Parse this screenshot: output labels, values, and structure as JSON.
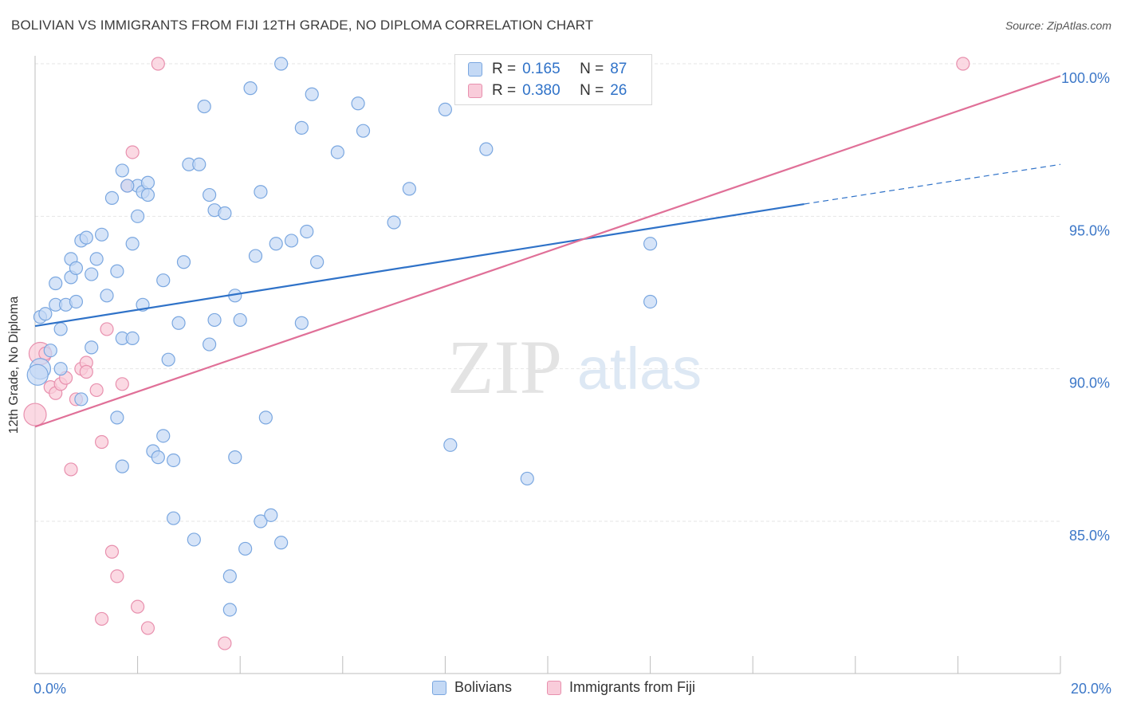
{
  "title": "BOLIVIAN VS IMMIGRANTS FROM FIJI 12TH GRADE, NO DIPLOMA CORRELATION CHART",
  "source": "Source: ZipAtlas.com",
  "watermark": {
    "zip": "ZIP",
    "atlas": "atlas"
  },
  "legend": {
    "r_label": "R =",
    "n_label": "N =",
    "rows": [
      {
        "r": "0.165",
        "n": "87",
        "color": "#7aa7e0"
      },
      {
        "r": "0.380",
        "n": "26",
        "color": "#e890ae"
      }
    ]
  },
  "bottom_legend": [
    "Bolivians",
    "Immigrants from Fiji"
  ],
  "chart_data": {
    "type": "scatter",
    "title": "BOLIVIAN VS IMMIGRANTS FROM FIJI 12TH GRADE, NO DIPLOMA CORRELATION CHART",
    "xlabel": "",
    "ylabel": "12th Grade, No Diploma",
    "xlim": [
      0,
      20
    ],
    "ylim": [
      80.5,
      100.8
    ],
    "x_tick_labels": [
      "0.0%",
      "20.0%"
    ],
    "y_ticks": [
      85,
      90,
      95,
      100
    ],
    "y_tick_labels": [
      "85.0%",
      "90.0%",
      "95.0%",
      "100.0%"
    ],
    "grid": true,
    "legend_position": "top-center",
    "colors": {
      "blue": "#2f72c8",
      "pink": "#e07098",
      "blue_fill": "#c4d9f5",
      "pink_fill": "#f9ccda"
    },
    "series": [
      {
        "name": "Bolivians",
        "points": [
          [
            0.1,
            91.7
          ],
          [
            0.1,
            90.0
          ],
          [
            0.2,
            91.8
          ],
          [
            0.3,
            90.6
          ],
          [
            0.4,
            92.1
          ],
          [
            0.4,
            92.8
          ],
          [
            0.5,
            90.0
          ],
          [
            0.5,
            91.3
          ],
          [
            0.6,
            92.1
          ],
          [
            0.7,
            93.0
          ],
          [
            0.7,
            93.6
          ],
          [
            0.8,
            92.2
          ],
          [
            0.8,
            93.3
          ],
          [
            0.9,
            94.2
          ],
          [
            1.0,
            94.3
          ],
          [
            1.1,
            93.1
          ],
          [
            1.1,
            90.7
          ],
          [
            1.2,
            93.6
          ],
          [
            1.3,
            94.4
          ],
          [
            1.4,
            92.4
          ],
          [
            1.5,
            95.6
          ],
          [
            1.6,
            93.2
          ],
          [
            1.6,
            88.4
          ],
          [
            1.7,
            96.5
          ],
          [
            1.7,
            91.0
          ],
          [
            1.9,
            94.1
          ],
          [
            1.9,
            91.0
          ],
          [
            2.0,
            95.0
          ],
          [
            2.0,
            96.0
          ],
          [
            2.1,
            95.8
          ],
          [
            2.1,
            92.1
          ],
          [
            2.2,
            96.1
          ],
          [
            2.2,
            95.7
          ],
          [
            2.3,
            87.3
          ],
          [
            2.4,
            87.1
          ],
          [
            2.5,
            92.9
          ],
          [
            2.5,
            87.8
          ],
          [
            2.6,
            90.3
          ],
          [
            2.7,
            85.1
          ],
          [
            2.7,
            87.0
          ],
          [
            2.8,
            91.5
          ],
          [
            2.9,
            93.5
          ],
          [
            3.0,
            96.7
          ],
          [
            3.1,
            84.4
          ],
          [
            3.2,
            96.7
          ],
          [
            3.3,
            98.6
          ],
          [
            3.4,
            95.7
          ],
          [
            3.4,
            90.8
          ],
          [
            3.5,
            95.2
          ],
          [
            3.5,
            91.6
          ],
          [
            3.7,
            95.1
          ],
          [
            3.8,
            83.2
          ],
          [
            3.8,
            82.1
          ],
          [
            3.9,
            87.1
          ],
          [
            3.9,
            92.4
          ],
          [
            4.0,
            91.6
          ],
          [
            4.1,
            84.1
          ],
          [
            4.2,
            99.2
          ],
          [
            4.3,
            93.7
          ],
          [
            4.4,
            95.8
          ],
          [
            4.4,
            85.0
          ],
          [
            4.5,
            88.4
          ],
          [
            4.6,
            85.2
          ],
          [
            4.7,
            94.1
          ],
          [
            4.8,
            100.0
          ],
          [
            4.8,
            84.3
          ],
          [
            5.0,
            94.2
          ],
          [
            5.2,
            97.9
          ],
          [
            5.2,
            91.5
          ],
          [
            5.3,
            94.5
          ],
          [
            5.4,
            99.0
          ],
          [
            5.5,
            93.5
          ],
          [
            5.9,
            97.1
          ],
          [
            6.3,
            98.7
          ],
          [
            6.4,
            97.8
          ],
          [
            7.0,
            94.8
          ],
          [
            7.3,
            95.9
          ],
          [
            8.0,
            98.5
          ],
          [
            8.1,
            87.5
          ],
          [
            8.8,
            97.2
          ],
          [
            9.6,
            86.4
          ],
          [
            12.0,
            94.1
          ],
          [
            12.0,
            92.2
          ],
          [
            0.05,
            89.8
          ],
          [
            1.7,
            86.8
          ],
          [
            0.9,
            89.0
          ],
          [
            1.8,
            96.0
          ]
        ]
      },
      {
        "name": "Immigrants from Fiji",
        "points": [
          [
            0.0,
            88.5
          ],
          [
            0.1,
            90.5
          ],
          [
            0.2,
            90.5
          ],
          [
            0.3,
            89.4
          ],
          [
            0.4,
            89.2
          ],
          [
            0.5,
            89.5
          ],
          [
            0.6,
            89.7
          ],
          [
            0.7,
            86.7
          ],
          [
            0.8,
            89.0
          ],
          [
            0.9,
            90.0
          ],
          [
            1.0,
            90.2
          ],
          [
            1.0,
            89.9
          ],
          [
            1.2,
            89.3
          ],
          [
            1.3,
            87.6
          ],
          [
            1.4,
            91.3
          ],
          [
            1.5,
            84.0
          ],
          [
            1.6,
            83.2
          ],
          [
            1.7,
            89.5
          ],
          [
            1.8,
            96.0
          ],
          [
            1.9,
            97.1
          ],
          [
            2.0,
            82.2
          ],
          [
            2.2,
            81.5
          ],
          [
            2.4,
            100.0
          ],
          [
            3.7,
            81.0
          ],
          [
            18.1,
            100.0
          ],
          [
            1.3,
            81.8
          ]
        ]
      }
    ],
    "trendlines": [
      {
        "series": "Bolivians",
        "x": [
          0.0,
          15.0
        ],
        "y": [
          91.4,
          95.4
        ],
        "dashed_extension": {
          "x": [
            15.0,
            20.0
          ],
          "y": [
            95.4,
            96.7
          ]
        }
      },
      {
        "series": "Immigrants from Fiji",
        "x": [
          0.0,
          20.0
        ],
        "y": [
          88.1,
          99.6
        ]
      }
    ]
  }
}
